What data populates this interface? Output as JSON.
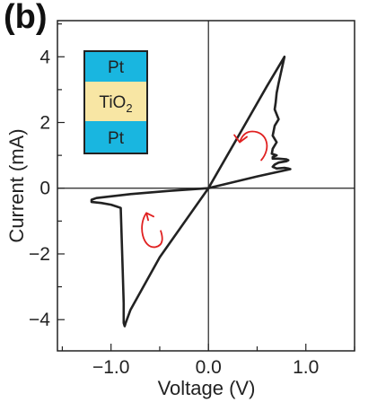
{
  "panel_label": "(b)",
  "chart_data": {
    "type": "line",
    "xlabel": "Voltage (V)",
    "ylabel": "Current (mA)",
    "xlim": [
      -1.55,
      1.5
    ],
    "ylim": [
      -4.95,
      5.1
    ],
    "x_ticks": [
      -1.0,
      0.0,
      1.0
    ],
    "x_tick_labels": [
      "−1.0",
      "0.0",
      "1.0"
    ],
    "y_ticks": [
      -4,
      -2,
      0,
      2,
      4
    ],
    "y_tick_labels": [
      "−4",
      "−2",
      "0",
      "2",
      "4"
    ],
    "zero_lines": true,
    "grid": false,
    "series": [
      {
        "color": "#222222",
        "x": [
          0.0,
          0.3,
          0.6,
          0.75,
          0.78,
          0.72,
          0.7,
          0.69,
          0.68,
          0.72,
          0.68,
          0.66,
          0.7,
          0.66,
          0.65,
          0.7,
          0.66,
          0.66,
          0.72,
          0.8,
          0.82,
          0.8,
          0.72,
          0.68,
          0.66,
          0.7,
          0.78,
          0.82,
          0.84,
          0.5,
          0.0,
          -0.5,
          -0.8,
          -0.85,
          -0.86,
          -0.87,
          -0.87,
          -0.88,
          -0.9,
          -0.95,
          -1.0,
          -1.1,
          -1.2,
          -1.2,
          -1.15,
          -0.8,
          -0.4,
          0.0
        ],
        "y": [
          0.0,
          1.55,
          3.1,
          3.85,
          4.0,
          3.2,
          2.9,
          2.6,
          2.4,
          2.1,
          1.9,
          1.6,
          1.4,
          1.2,
          1.05,
          1.0,
          0.95,
          0.9,
          0.9,
          0.88,
          0.85,
          0.82,
          0.78,
          0.72,
          0.65,
          0.6,
          0.62,
          0.6,
          0.58,
          0.36,
          0.0,
          -2.1,
          -3.7,
          -4.1,
          -4.2,
          -4.1,
          -3.5,
          -2.5,
          -0.6,
          -0.55,
          -0.5,
          -0.45,
          -0.42,
          -0.35,
          -0.3,
          -0.18,
          -0.08,
          0.0
        ]
      }
    ],
    "annotations": [
      {
        "type": "curved-arrow",
        "color": "#e02020",
        "x": 0.45,
        "y": 1.4,
        "direction": "up-then-left"
      },
      {
        "type": "curved-arrow",
        "color": "#e02020",
        "x": -0.6,
        "y": -1.3,
        "direction": "down-then-up"
      }
    ]
  },
  "inset": {
    "layers": [
      {
        "label": "Pt",
        "color": "#19b6e0"
      },
      {
        "label": "TiO",
        "subscript": "2",
        "color": "#f8e6a4"
      },
      {
        "label": "Pt",
        "color": "#19b6e0"
      }
    ]
  }
}
